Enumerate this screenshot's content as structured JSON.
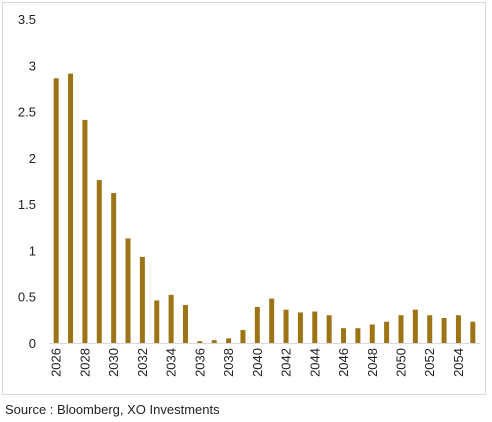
{
  "chart_data": {
    "type": "bar",
    "categories": [
      "2026",
      "2027",
      "2028",
      "2029",
      "2030",
      "2031",
      "2032",
      "2033",
      "2034",
      "2035",
      "2036",
      "2037",
      "2038",
      "2039",
      "2040",
      "2041",
      "2042",
      "2043",
      "2044",
      "2045",
      "2046",
      "2047",
      "2048",
      "2049",
      "2050",
      "2051",
      "2052",
      "2053",
      "2054",
      "2055"
    ],
    "tick_labels": [
      "2026",
      "2028",
      "2030",
      "2032",
      "2034",
      "2036",
      "2038",
      "2040",
      "2042",
      "2044",
      "2046",
      "2048",
      "2050",
      "2052",
      "2054"
    ],
    "values": [
      2.86,
      2.91,
      2.41,
      1.76,
      1.62,
      1.13,
      0.93,
      0.46,
      0.52,
      0.41,
      0.02,
      0.03,
      0.05,
      0.14,
      0.39,
      0.48,
      0.36,
      0.33,
      0.34,
      0.3,
      0.16,
      0.16,
      0.2,
      0.23,
      0.3,
      0.36,
      0.3,
      0.27,
      0.3,
      0.23
    ],
    "yticks": [
      "0",
      "0.5",
      "1",
      "1.5",
      "2",
      "2.5",
      "3",
      "3.5"
    ],
    "ylim": [
      0,
      3.5
    ],
    "title": "",
    "xlabel": "",
    "ylabel": "",
    "grid": false,
    "bar_color": "#9c7416"
  },
  "source": "Source : Bloomberg, XO Investments"
}
